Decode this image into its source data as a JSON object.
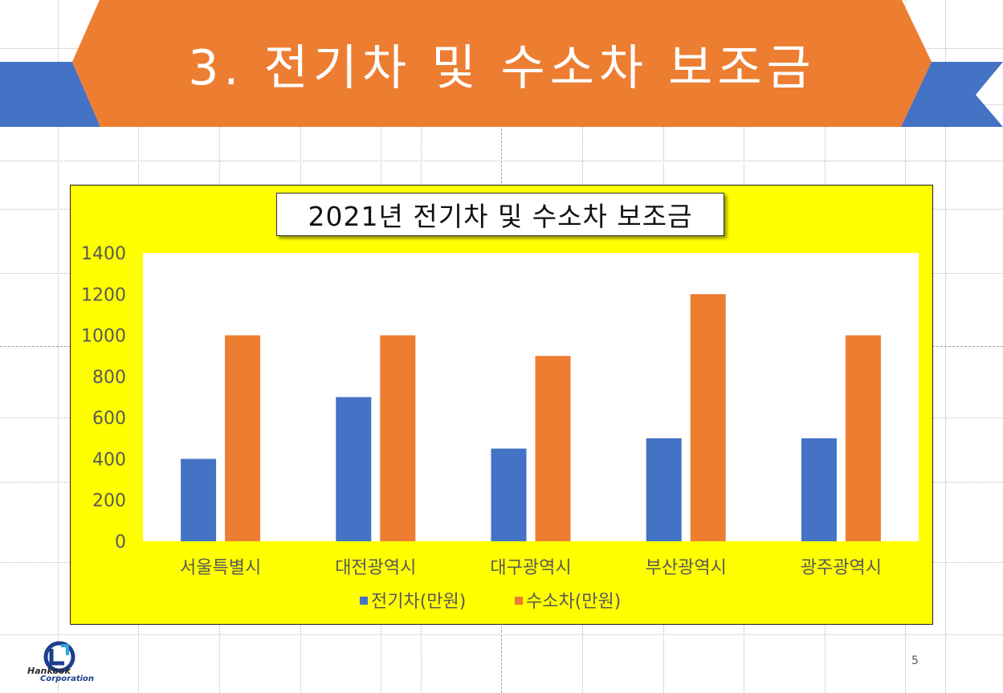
{
  "slide": {
    "title": "3. 전기차 및 수소차 보조금",
    "page_number": "5",
    "logo_text_top": "Hankook",
    "logo_text_bottom": "Corporation",
    "colors": {
      "banner": "#ed7d31",
      "ribbon": "#4472c4",
      "chart_bg": "#ffff00",
      "plot_bg": "#ffffff"
    }
  },
  "chart_data": {
    "type": "bar",
    "title": "2021년 전기차 및 수소차 보조금",
    "categories": [
      "서울특별시",
      "대전광역시",
      "대구광역시",
      "부산광역시",
      "광주광역시"
    ],
    "series": [
      {
        "name": "전기차(만원)",
        "color": "#4472c4",
        "values": [
          400,
          700,
          450,
          500,
          500
        ]
      },
      {
        "name": "수소차(만원)",
        "color": "#ed7d31",
        "values": [
          1000,
          1000,
          900,
          1200,
          1000
        ]
      }
    ],
    "ylim": [
      0,
      1400
    ],
    "yticks": [
      0,
      200,
      400,
      600,
      800,
      1000,
      1200,
      1400
    ],
    "legend": "bottom",
    "grid": false
  }
}
